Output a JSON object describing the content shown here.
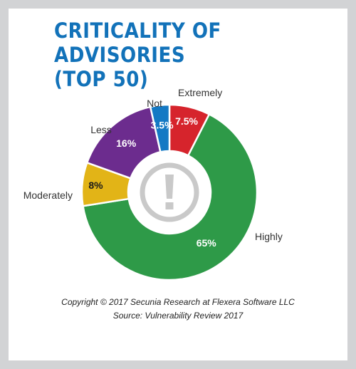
{
  "title_lines": [
    "CRITICALITY OF ADVISORIES",
    "(TOP 50)"
  ],
  "footer": {
    "copyright": "Copyright © 2017 Secunia Research at Flexera Software LLC",
    "source": "Source: Vulnerability Review 2017"
  },
  "colors": {
    "title": "#1272b9",
    "frame": "#d2d3d5",
    "center_icon": "#c9c9c9"
  },
  "center_icon_name": "exclamation-icon",
  "chart_data": {
    "type": "pie",
    "title": "CRITICALITY OF ADVISORIES (TOP 50)",
    "slices": [
      {
        "name": "Extremely",
        "value": 7.5,
        "label": "7.5%",
        "color": "#d6242c",
        "label_color": "#ffffff"
      },
      {
        "name": "Highly",
        "value": 65,
        "label": "65%",
        "color": "#2e9a48",
        "label_color": "#ffffff"
      },
      {
        "name": "Moderately",
        "value": 8,
        "label": "8%",
        "color": "#e2b417",
        "label_color": "#1a1a1a"
      },
      {
        "name": "Less",
        "value": 16,
        "label": "16%",
        "color": "#6c2c8e",
        "label_color": "#ffffff"
      },
      {
        "name": "Not",
        "value": 3.5,
        "label": "3.5%",
        "color": "#1479c4",
        "label_color": "#ffffff"
      }
    ]
  }
}
